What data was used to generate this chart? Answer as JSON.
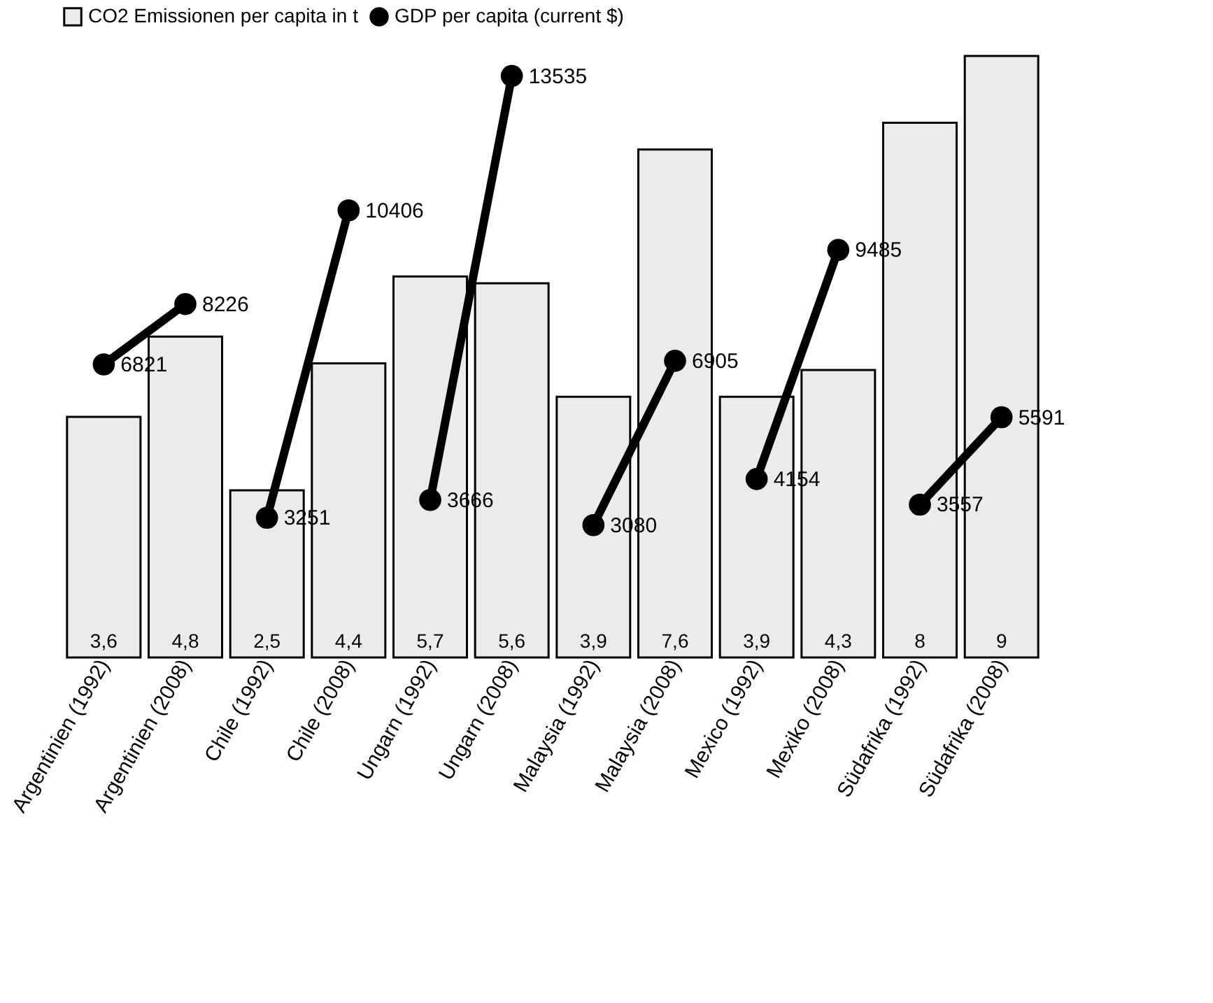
{
  "chart_data": {
    "type": "bar",
    "categories": [
      "Argentinien (1992)",
      "Argentinien (2008)",
      "Chile (1992)",
      "Chile (2008)",
      "Ungarn (1992)",
      "Ungarn (2008)",
      "Malaysia (1992)",
      "Malaysia (2008)",
      "Mexico (1992)",
      "Mexiko (2008)",
      "Südafrika (1992)",
      "Südafrika (2008)"
    ],
    "series": [
      {
        "name": "CO2 Emissionen per capita in t",
        "color": "#ebebeb",
        "values": [
          3.6,
          4.8,
          2.5,
          4.4,
          5.7,
          5.6,
          3.9,
          7.6,
          3.9,
          4.3,
          8,
          9
        ],
        "value_labels": [
          "3,6",
          "4,8",
          "2,5",
          "4,4",
          "5,7",
          "5,6",
          "3,9",
          "7,6",
          "3,9",
          "4,3",
          "8",
          "9"
        ]
      },
      {
        "name": "GDP per capita (current $)",
        "type": "line",
        "axis": "y2",
        "color": "#000000",
        "marker": "circle",
        "values": [
          6821,
          8226,
          3251,
          10406,
          3666,
          13535,
          3080,
          6905,
          4154,
          9485,
          3557,
          5591
        ]
      }
    ],
    "data_labels": true,
    "legend": "top",
    "grid": false
  }
}
